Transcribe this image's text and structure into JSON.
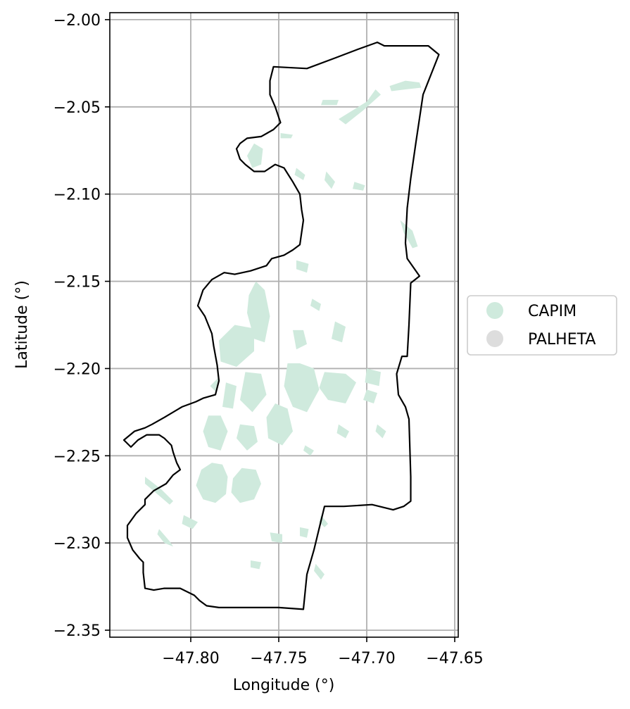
{
  "map": {
    "xlabel": "Longitude (°)",
    "ylabel": "Latitude (°)",
    "xlim": [
      -47.846,
      -47.648
    ],
    "ylim": [
      -2.354,
      -1.996
    ],
    "grid": true,
    "x_ticks": [
      {
        "value": -47.8,
        "label": "−47.80"
      },
      {
        "value": -47.75,
        "label": "−47.75"
      },
      {
        "value": -47.7,
        "label": "−47.70"
      },
      {
        "value": -47.65,
        "label": "−47.65"
      }
    ],
    "y_ticks": [
      {
        "value": -2.0,
        "label": "−2.00"
      },
      {
        "value": -2.05,
        "label": "−2.05"
      },
      {
        "value": -2.1,
        "label": "−2.10"
      },
      {
        "value": -2.15,
        "label": "−2.15"
      },
      {
        "value": -2.2,
        "label": "−2.20"
      },
      {
        "value": -2.25,
        "label": "−2.25"
      },
      {
        "value": -2.3,
        "label": "−2.30"
      },
      {
        "value": -2.35,
        "label": "−2.35"
      }
    ],
    "legend": {
      "placement": "right",
      "entries": [
        {
          "label": "CAPIM",
          "color": "#cfeadd"
        },
        {
          "label": "PALHETA",
          "color": "#dddddd"
        }
      ]
    },
    "boundary_color": "#000000",
    "boundary": [
      [
        -47.753,
        -2.027
      ],
      [
        -47.734,
        -2.028
      ],
      [
        -47.718,
        -2.022
      ],
      [
        -47.705,
        -2.017
      ],
      [
        -47.694,
        -2.013
      ],
      [
        -47.69,
        -2.015
      ],
      [
        -47.665,
        -2.015
      ],
      [
        -47.659,
        -2.02
      ],
      [
        -47.668,
        -2.043
      ],
      [
        -47.672,
        -2.07
      ],
      [
        -47.675,
        -2.091
      ],
      [
        -47.677,
        -2.108
      ],
      [
        -47.678,
        -2.128
      ],
      [
        -47.677,
        -2.137
      ],
      [
        -47.67,
        -2.147
      ],
      [
        -47.675,
        -2.151
      ],
      [
        -47.676,
        -2.175
      ],
      [
        -47.677,
        -2.193
      ],
      [
        -47.68,
        -2.193
      ],
      [
        -47.683,
        -2.203
      ],
      [
        -47.682,
        -2.215
      ],
      [
        -47.678,
        -2.222
      ],
      [
        -47.676,
        -2.229
      ],
      [
        -47.675,
        -2.262
      ],
      [
        -47.675,
        -2.276
      ],
      [
        -47.679,
        -2.279
      ],
      [
        -47.685,
        -2.281
      ],
      [
        -47.697,
        -2.278
      ],
      [
        -47.713,
        -2.279
      ],
      [
        -47.724,
        -2.279
      ],
      [
        -47.73,
        -2.304
      ],
      [
        -47.734,
        -2.318
      ],
      [
        -47.736,
        -2.338
      ],
      [
        -47.75,
        -2.337
      ],
      [
        -47.784,
        -2.337
      ],
      [
        -47.791,
        -2.336
      ],
      [
        -47.795,
        -2.333
      ],
      [
        -47.798,
        -2.33
      ],
      [
        -47.806,
        -2.326
      ],
      [
        -47.815,
        -2.326
      ],
      [
        -47.821,
        -2.327
      ],
      [
        -47.826,
        -2.326
      ],
      [
        -47.827,
        -2.317
      ],
      [
        -47.827,
        -2.311
      ],
      [
        -47.829,
        -2.309
      ],
      [
        -47.833,
        -2.304
      ],
      [
        -47.836,
        -2.297
      ],
      [
        -47.836,
        -2.29
      ],
      [
        -47.831,
        -2.283
      ],
      [
        -47.826,
        -2.278
      ],
      [
        -47.826,
        -2.275
      ],
      [
        -47.821,
        -2.27
      ],
      [
        -47.814,
        -2.266
      ],
      [
        -47.81,
        -2.261
      ],
      [
        -47.806,
        -2.258
      ],
      [
        -47.808,
        -2.254
      ],
      [
        -47.81,
        -2.248
      ],
      [
        -47.811,
        -2.244
      ],
      [
        -47.815,
        -2.24
      ],
      [
        -47.818,
        -2.238
      ],
      [
        -47.825,
        -2.238
      ],
      [
        -47.83,
        -2.241
      ],
      [
        -47.834,
        -2.245
      ],
      [
        -47.838,
        -2.241
      ],
      [
        -47.832,
        -2.236
      ],
      [
        -47.826,
        -2.234
      ],
      [
        -47.822,
        -2.232
      ],
      [
        -47.815,
        -2.228
      ],
      [
        -47.805,
        -2.222
      ],
      [
        -47.797,
        -2.219
      ],
      [
        -47.793,
        -2.217
      ],
      [
        -47.786,
        -2.215
      ],
      [
        -47.784,
        -2.207
      ],
      [
        -47.785,
        -2.198
      ],
      [
        -47.787,
        -2.187
      ],
      [
        -47.788,
        -2.18
      ],
      [
        -47.792,
        -2.17
      ],
      [
        -47.796,
        -2.164
      ],
      [
        -47.793,
        -2.155
      ],
      [
        -47.788,
        -2.149
      ],
      [
        -47.781,
        -2.145
      ],
      [
        -47.775,
        -2.146
      ],
      [
        -47.766,
        -2.144
      ],
      [
        -47.757,
        -2.141
      ],
      [
        -47.754,
        -2.137
      ],
      [
        -47.747,
        -2.135
      ],
      [
        -47.742,
        -2.132
      ],
      [
        -47.738,
        -2.129
      ],
      [
        -47.736,
        -2.115
      ],
      [
        -47.737,
        -2.109
      ],
      [
        -47.738,
        -2.1
      ],
      [
        -47.742,
        -2.093
      ],
      [
        -47.747,
        -2.085
      ],
      [
        -47.752,
        -2.083
      ],
      [
        -47.758,
        -2.087
      ],
      [
        -47.764,
        -2.087
      ],
      [
        -47.769,
        -2.083
      ],
      [
        -47.772,
        -2.08
      ],
      [
        -47.774,
        -2.074
      ],
      [
        -47.772,
        -2.071
      ],
      [
        -47.768,
        -2.068
      ],
      [
        -47.76,
        -2.067
      ],
      [
        -47.753,
        -2.063
      ],
      [
        -47.749,
        -2.059
      ],
      [
        -47.752,
        -2.05
      ],
      [
        -47.755,
        -2.043
      ],
      [
        -47.755,
        -2.035
      ],
      [
        -47.753,
        -2.027
      ]
    ],
    "capim_patches": [
      [
        [
          -47.794,
          -2.258
        ],
        [
          -47.788,
          -2.254
        ],
        [
          -47.782,
          -2.255
        ],
        [
          -47.779,
          -2.262
        ],
        [
          -47.78,
          -2.272
        ],
        [
          -47.786,
          -2.277
        ],
        [
          -47.793,
          -2.275
        ],
        [
          -47.797,
          -2.267
        ]
      ],
      [
        [
          -47.776,
          -2.263
        ],
        [
          -47.771,
          -2.257
        ],
        [
          -47.763,
          -2.258
        ],
        [
          -47.76,
          -2.266
        ],
        [
          -47.764,
          -2.275
        ],
        [
          -47.772,
          -2.277
        ],
        [
          -47.777,
          -2.271
        ]
      ],
      [
        [
          -47.784,
          -2.184
        ],
        [
          -47.775,
          -2.175
        ],
        [
          -47.764,
          -2.177
        ],
        [
          -47.764,
          -2.19
        ],
        [
          -47.774,
          -2.199
        ],
        [
          -47.783,
          -2.196
        ]
      ],
      [
        [
          -47.767,
          -2.158
        ],
        [
          -47.763,
          -2.15
        ],
        [
          -47.758,
          -2.155
        ],
        [
          -47.755,
          -2.17
        ],
        [
          -47.758,
          -2.185
        ],
        [
          -47.764,
          -2.183
        ],
        [
          -47.768,
          -2.168
        ]
      ],
      [
        [
          -47.745,
          -2.197
        ],
        [
          -47.738,
          -2.197
        ],
        [
          -47.73,
          -2.2
        ],
        [
          -47.727,
          -2.212
        ],
        [
          -47.734,
          -2.225
        ],
        [
          -47.742,
          -2.222
        ],
        [
          -47.747,
          -2.21
        ]
      ],
      [
        [
          -47.724,
          -2.202
        ],
        [
          -47.712,
          -2.203
        ],
        [
          -47.706,
          -2.208
        ],
        [
          -47.712,
          -2.22
        ],
        [
          -47.722,
          -2.218
        ],
        [
          -47.727,
          -2.211
        ]
      ],
      [
        [
          -47.769,
          -2.202
        ],
        [
          -47.76,
          -2.203
        ],
        [
          -47.757,
          -2.215
        ],
        [
          -47.765,
          -2.225
        ],
        [
          -47.772,
          -2.218
        ]
      ],
      [
        [
          -47.752,
          -2.22
        ],
        [
          -47.745,
          -2.223
        ],
        [
          -47.742,
          -2.236
        ],
        [
          -47.748,
          -2.244
        ],
        [
          -47.756,
          -2.24
        ],
        [
          -47.757,
          -2.228
        ]
      ],
      [
        [
          -47.79,
          -2.227
        ],
        [
          -47.783,
          -2.227
        ],
        [
          -47.779,
          -2.236
        ],
        [
          -47.783,
          -2.247
        ],
        [
          -47.79,
          -2.245
        ],
        [
          -47.793,
          -2.236
        ]
      ],
      [
        [
          -47.772,
          -2.232
        ],
        [
          -47.764,
          -2.233
        ],
        [
          -47.762,
          -2.242
        ],
        [
          -47.768,
          -2.247
        ],
        [
          -47.774,
          -2.24
        ]
      ],
      [
        [
          -47.78,
          -2.208
        ],
        [
          -47.774,
          -2.21
        ],
        [
          -47.776,
          -2.223
        ],
        [
          -47.782,
          -2.222
        ]
      ],
      [
        [
          -47.742,
          -2.178
        ],
        [
          -47.736,
          -2.178
        ],
        [
          -47.734,
          -2.186
        ],
        [
          -47.74,
          -2.189
        ]
      ],
      [
        [
          -47.718,
          -2.173
        ],
        [
          -47.712,
          -2.176
        ],
        [
          -47.714,
          -2.185
        ],
        [
          -47.72,
          -2.183
        ]
      ],
      [
        [
          -47.7,
          -2.2
        ],
        [
          -47.692,
          -2.202
        ],
        [
          -47.693,
          -2.21
        ],
        [
          -47.701,
          -2.208
        ]
      ],
      [
        [
          -47.7,
          -2.212
        ],
        [
          -47.694,
          -2.214
        ],
        [
          -47.696,
          -2.22
        ],
        [
          -47.702,
          -2.218
        ]
      ],
      [
        [
          -47.768,
          -2.078
        ],
        [
          -47.764,
          -2.071
        ],
        [
          -47.759,
          -2.074
        ],
        [
          -47.76,
          -2.083
        ],
        [
          -47.765,
          -2.085
        ]
      ],
      [
        [
          -47.716,
          -2.057
        ],
        [
          -47.708,
          -2.052
        ],
        [
          -47.7,
          -2.047
        ],
        [
          -47.695,
          -2.04
        ],
        [
          -47.692,
          -2.043
        ],
        [
          -47.702,
          -2.052
        ],
        [
          -47.712,
          -2.06
        ]
      ],
      [
        [
          -47.687,
          -2.038
        ],
        [
          -47.678,
          -2.035
        ],
        [
          -47.67,
          -2.036
        ],
        [
          -47.669,
          -2.039
        ],
        [
          -47.678,
          -2.04
        ],
        [
          -47.686,
          -2.041
        ]
      ],
      [
        [
          -47.681,
          -2.115
        ],
        [
          -47.674,
          -2.121
        ],
        [
          -47.671,
          -2.13
        ],
        [
          -47.674,
          -2.131
        ],
        [
          -47.679,
          -2.122
        ]
      ],
      [
        [
          -47.749,
          -2.065
        ],
        [
          -47.742,
          -2.066
        ],
        [
          -47.743,
          -2.068
        ],
        [
          -47.749,
          -2.068
        ]
      ],
      [
        [
          -47.74,
          -2.085
        ],
        [
          -47.735,
          -2.089
        ],
        [
          -47.736,
          -2.092
        ],
        [
          -47.741,
          -2.089
        ]
      ],
      [
        [
          -47.723,
          -2.087
        ],
        [
          -47.718,
          -2.093
        ],
        [
          -47.72,
          -2.097
        ],
        [
          -47.724,
          -2.092
        ]
      ],
      [
        [
          -47.74,
          -2.138
        ],
        [
          -47.733,
          -2.14
        ],
        [
          -47.734,
          -2.145
        ],
        [
          -47.74,
          -2.143
        ]
      ],
      [
        [
          -47.738,
          -2.291
        ],
        [
          -47.733,
          -2.292
        ],
        [
          -47.734,
          -2.297
        ],
        [
          -47.738,
          -2.296
        ]
      ],
      [
        [
          -47.755,
          -2.294
        ],
        [
          -47.748,
          -2.295
        ],
        [
          -47.748,
          -2.3
        ],
        [
          -47.754,
          -2.299
        ]
      ],
      [
        [
          -47.826,
          -2.262
        ],
        [
          -47.817,
          -2.269
        ],
        [
          -47.81,
          -2.276
        ],
        [
          -47.812,
          -2.278
        ],
        [
          -47.819,
          -2.272
        ],
        [
          -47.826,
          -2.266
        ]
      ],
      [
        [
          -47.818,
          -2.292
        ],
        [
          -47.812,
          -2.299
        ],
        [
          -47.81,
          -2.302
        ],
        [
          -47.815,
          -2.3
        ],
        [
          -47.819,
          -2.295
        ]
      ],
      [
        [
          -47.729,
          -2.312
        ],
        [
          -47.724,
          -2.318
        ],
        [
          -47.726,
          -2.321
        ],
        [
          -47.73,
          -2.316
        ]
      ],
      [
        [
          -47.726,
          -2.284
        ],
        [
          -47.722,
          -2.289
        ],
        [
          -47.724,
          -2.291
        ],
        [
          -47.727,
          -2.288
        ]
      ],
      [
        [
          -47.804,
          -2.284
        ],
        [
          -47.796,
          -2.288
        ],
        [
          -47.799,
          -2.292
        ],
        [
          -47.805,
          -2.289
        ]
      ],
      [
        [
          -47.766,
          -2.31
        ],
        [
          -47.76,
          -2.311
        ],
        [
          -47.761,
          -2.315
        ],
        [
          -47.766,
          -2.314
        ]
      ],
      [
        [
          -47.716,
          -2.232
        ],
        [
          -47.71,
          -2.236
        ],
        [
          -47.712,
          -2.24
        ],
        [
          -47.717,
          -2.237
        ]
      ],
      [
        [
          -47.694,
          -2.232
        ],
        [
          -47.689,
          -2.236
        ],
        [
          -47.691,
          -2.24
        ],
        [
          -47.695,
          -2.236
        ]
      ],
      [
        [
          -47.735,
          -2.244
        ],
        [
          -47.73,
          -2.247
        ],
        [
          -47.732,
          -2.25
        ],
        [
          -47.736,
          -2.247
        ]
      ],
      [
        [
          -47.731,
          -2.16
        ],
        [
          -47.726,
          -2.163
        ],
        [
          -47.727,
          -2.167
        ],
        [
          -47.732,
          -2.164
        ]
      ],
      [
        [
          -47.784,
          -2.205
        ],
        [
          -47.786,
          -2.213
        ],
        [
          -47.789,
          -2.21
        ]
      ],
      [
        [
          -47.707,
          -2.093
        ],
        [
          -47.701,
          -2.095
        ],
        [
          -47.702,
          -2.098
        ],
        [
          -47.708,
          -2.097
        ]
      ],
      [
        [
          -47.725,
          -2.046
        ],
        [
          -47.716,
          -2.046
        ],
        [
          -47.717,
          -2.049
        ],
        [
          -47.726,
          -2.049
        ]
      ]
    ]
  }
}
